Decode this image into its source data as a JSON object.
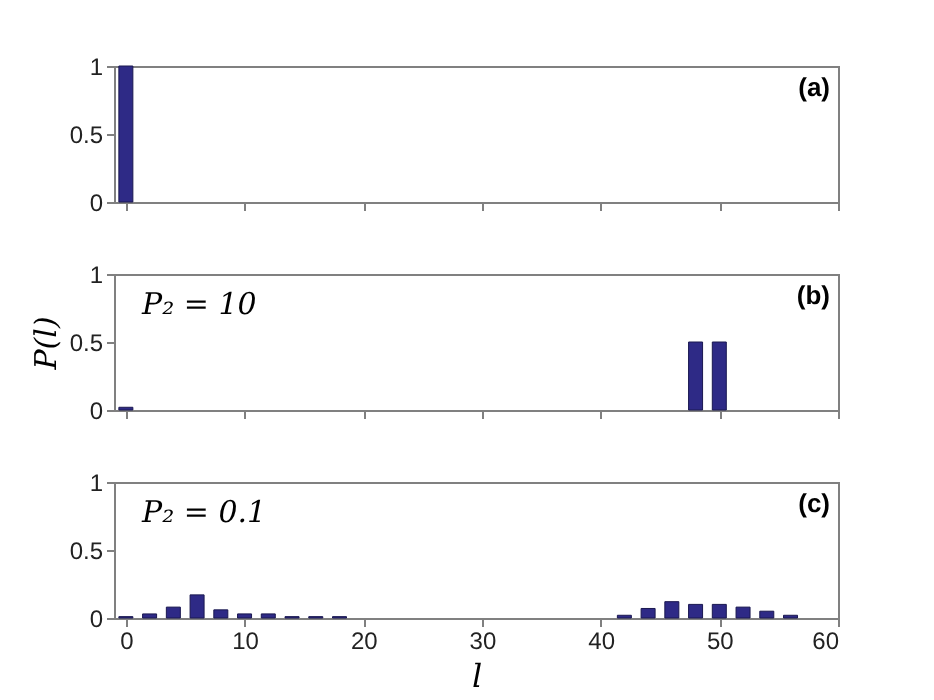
{
  "chart_data": [
    {
      "type": "bar",
      "annotations": [
        "(a)"
      ],
      "x": [
        0
      ],
      "values": [
        1
      ],
      "color": "#2e2a86",
      "xlim": [
        -1,
        60
      ],
      "xticks": [
        0,
        10,
        20,
        30,
        40,
        50,
        60
      ],
      "ylim": [
        0,
        1
      ],
      "yticks": [
        0,
        0.5,
        1
      ],
      "tick_labels": "y"
    },
    {
      "type": "bar",
      "ylabel": "P(l)",
      "annotations": [
        "(b)",
        "P₂ = 10"
      ],
      "x": [
        0,
        48,
        50
      ],
      "values": [
        0.02,
        0.5,
        0.5
      ],
      "color": "#2e2a86",
      "xlim": [
        -1,
        60
      ],
      "xticks": [
        0,
        10,
        20,
        30,
        40,
        50,
        60
      ],
      "ylim": [
        0,
        1
      ],
      "yticks": [
        0,
        0.5,
        1
      ],
      "tick_labels": "y"
    },
    {
      "type": "bar",
      "xlabel": "l",
      "annotations": [
        "(c)",
        "P₂ = 0.1"
      ],
      "x": [
        0,
        2,
        4,
        6,
        8,
        10,
        12,
        14,
        16,
        18,
        42,
        44,
        46,
        48,
        50,
        52,
        54,
        56
      ],
      "values": [
        0.01,
        0.03,
        0.08,
        0.17,
        0.06,
        0.03,
        0.03,
        0.01,
        0.01,
        0.01,
        0.02,
        0.07,
        0.12,
        0.1,
        0.1,
        0.08,
        0.05,
        0.02
      ],
      "color": "#2e2a86",
      "xlim": [
        -1,
        60
      ],
      "xticks": [
        0,
        10,
        20,
        30,
        40,
        50,
        60
      ],
      "ylim": [
        0,
        1
      ],
      "yticks": [
        0,
        0.5,
        1
      ]
    }
  ]
}
